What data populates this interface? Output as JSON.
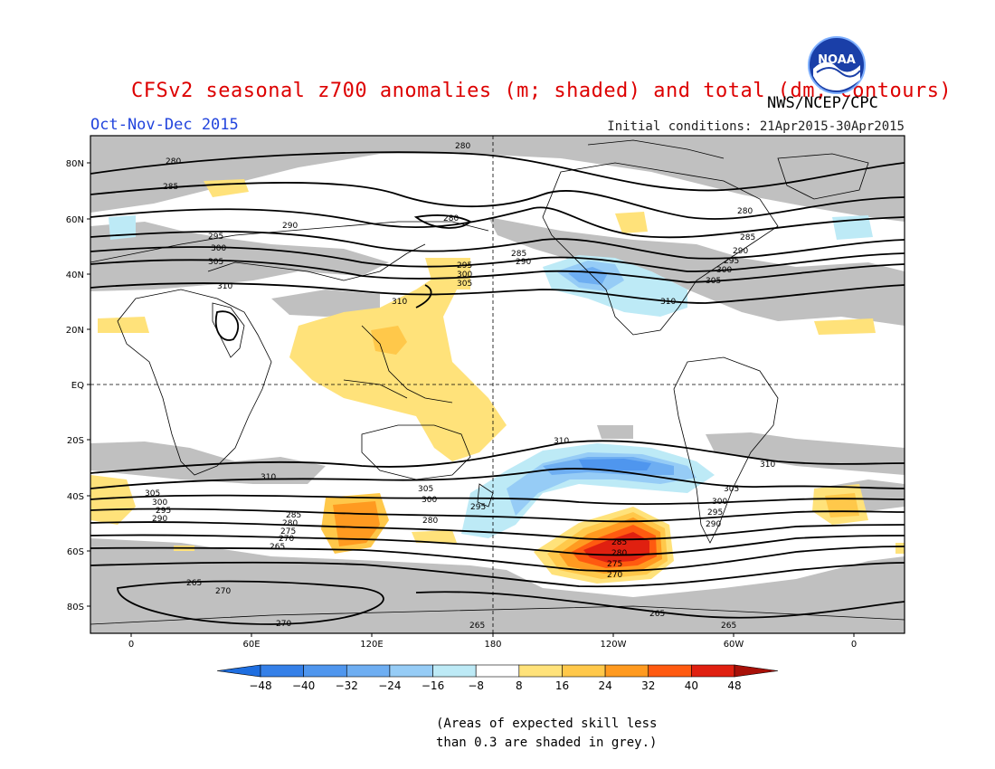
{
  "header": {
    "title": "CFSv2 seasonal z700 anomalies (m; shaded) and total (dm; contours)",
    "agency": "NWS/NCEP/CPC",
    "season": "Oct-Nov-Dec 2015",
    "initial_conditions": "Initial conditions: 21Apr2015-30Apr2015"
  },
  "logo": {
    "text": "NOAA",
    "icon": "noaa-logo-icon"
  },
  "map": {
    "latitude_labels": [
      "80N",
      "60N",
      "40N",
      "20N",
      "EQ",
      "20S",
      "40S",
      "60S",
      "80S"
    ],
    "longitude_labels": [
      "0",
      "60E",
      "120E",
      "180",
      "120W",
      "60W",
      "0"
    ],
    "contour_labels": [
      "280",
      "285",
      "290",
      "295",
      "300",
      "305",
      "310",
      "270",
      "275",
      "265"
    ]
  },
  "colorbar": {
    "ticks": [
      "-48",
      "-40",
      "-32",
      "-24",
      "-16",
      "-8",
      "8",
      "16",
      "24",
      "32",
      "40",
      "48"
    ],
    "colors": [
      "#1e6ee0",
      "#3580e8",
      "#4f96ee",
      "#6eaef2",
      "#96ccf6",
      "#bdeaf6",
      "#ffffff",
      "#ffe27a",
      "#ffc84a",
      "#ff9a20",
      "#ff5a10",
      "#e02010",
      "#a81008"
    ]
  },
  "notes": {
    "line1": "(Areas of expected skill less",
    "line2": "than 0.3 are shaded in grey.)"
  }
}
